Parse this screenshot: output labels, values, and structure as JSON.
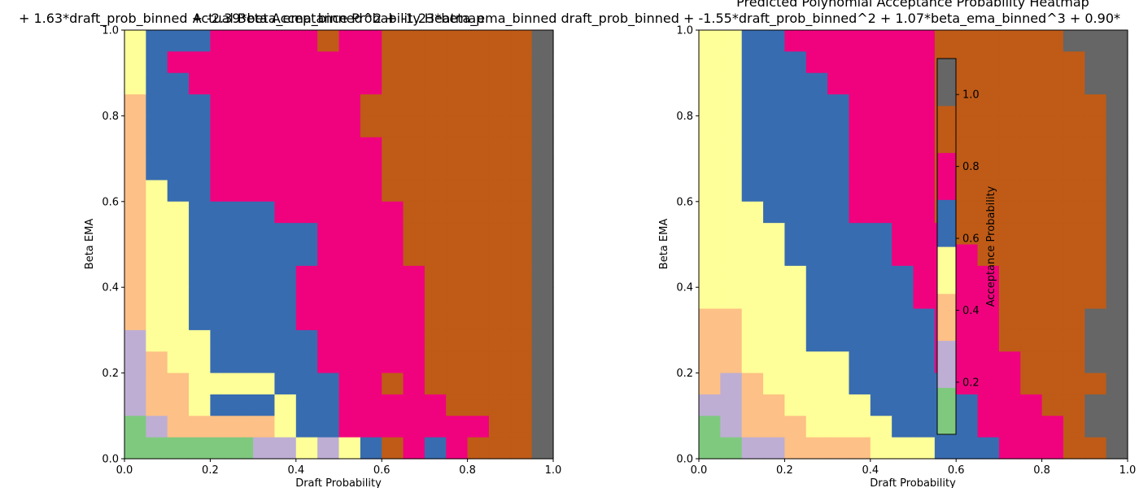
{
  "palette": [
    "#7fc97f",
    "#beaed4",
    "#fdc086",
    "#ffff99",
    "#386cb0",
    "#f0027f",
    "#bf5b17",
    "#666666"
  ],
  "chart_data": [
    {
      "type": "heatmap",
      "title": "Actual Beta Acceptance Probability Heatmap",
      "overlay_title": "+ 1.63*draft_prob_binned + -2.39*beta_ema_binned^2 + -1.23*beta_ema_binned draft_prob_binned + -1.55*draft_prob_binned^2 + 1.07*beta_ema_binned^3 + 0.90*",
      "xlabel": "Draft Probability",
      "ylabel": "Beta EMA",
      "xlim": [
        0,
        1
      ],
      "ylim": [
        0,
        1
      ],
      "xticks": [
        "0.0",
        "0.2",
        "0.4",
        "0.6",
        "0.8",
        "1.0"
      ],
      "yticks": [
        "0.0",
        "0.2",
        "0.4",
        "0.6",
        "0.8",
        "1.0"
      ],
      "bin_width": 0.05,
      "value_range": [
        0.05,
        1.1
      ],
      "rows_top_to_bottom": [
        "23333444455655666777",
        "34445555565566666667",
        "34555555555566666667",
        "34455555555566666667",
        "24445555555666666667",
        "24445555555666666667",
        "24445555555566666667",
        "24445555555566666667",
        "23445555555566666667",
        "23344445555556666667",
        "23344444455556666667",
        "23344444455556666667",
        "23344444555555666667",
        "23344444555555666667",
        "23344444555555666667",
        "13334444455555666667",
        "12334444455555666667",
        "12233334445565666667",
        "12234443445555566667",
        "01222223445555555667",
        "00000011313465456667"
      ]
    },
    {
      "type": "heatmap",
      "title": "Predicted Polynomial Acceptance Probability Heatmap",
      "xlabel": "Draft Probability",
      "ylabel": "Beta EMA",
      "xlim": [
        0,
        1
      ],
      "ylim": [
        0,
        1
      ],
      "xticks": [
        "0.0",
        "0.2",
        "0.4",
        "0.6",
        "0.8",
        "1.0"
      ],
      "yticks": [
        "0.0",
        "0.2",
        "0.4",
        "0.6",
        "0.8",
        "1.0"
      ],
      "bin_width": 0.05,
      "value_range": [
        0.05,
        1.1
      ],
      "rows_top_to_bottom": [
        "33445555566666666777",
        "33445555555666666777",
        "33444555555666666677",
        "33444455555666666677",
        "33444445555666666667",
        "33444445555666666667",
        "33444445555666666667",
        "33444445555666666667",
        "33444445555666666667",
        "33344445555666666667",
        "33334444455566666667",
        "33334444455556666667",
        "33333444445555666667",
        "33333444445555666667",
        "22333444444555666677",
        "22333444444555666677",
        "22333334444555566677",
        "21233334444455566667",
        "11223333444445556677",
        "01222333344445555677",
        "00112222333444555667"
      ],
      "colorbar": {
        "label": "Acceptance Probability",
        "range": [
          0.055,
          1.1
        ],
        "ticks": [
          {
            "value": 0.2,
            "label": "0.2"
          },
          {
            "value": 0.4,
            "label": "0.4"
          },
          {
            "value": 0.6,
            "label": "0.6"
          },
          {
            "value": 0.8,
            "label": "0.8"
          },
          {
            "value": 1.0,
            "label": "1.0"
          }
        ]
      }
    }
  ]
}
